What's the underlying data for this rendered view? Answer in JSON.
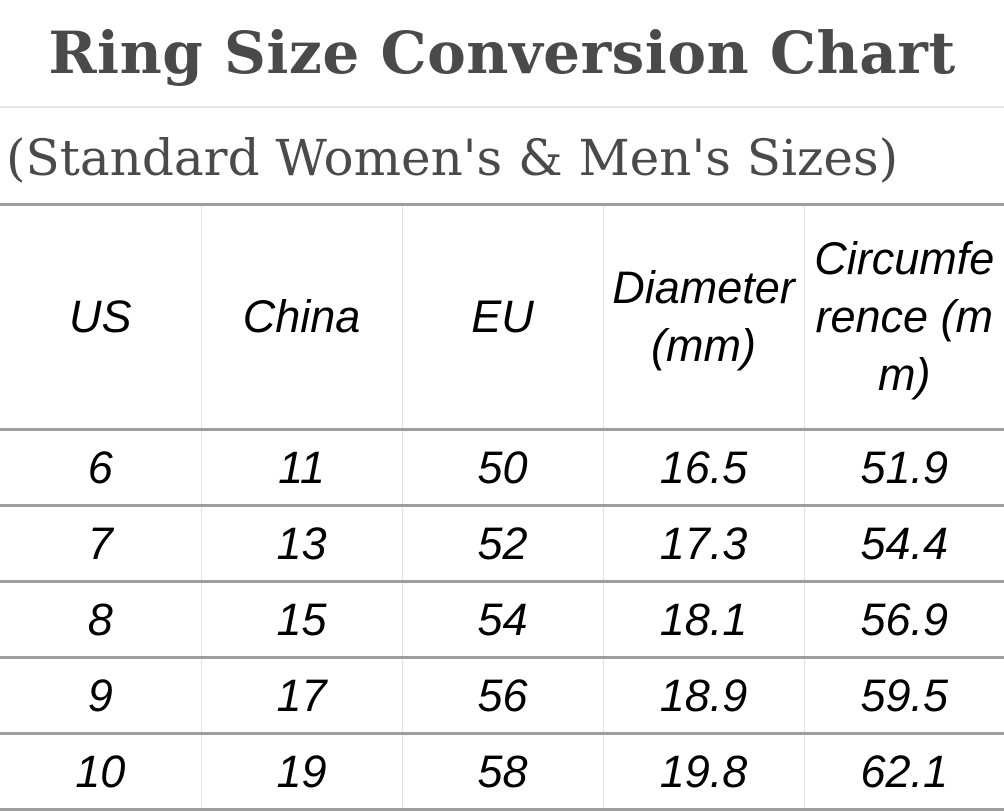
{
  "title": "Ring Size Conversion Chart",
  "subtitle": "(Standard Women's & Men's Sizes)",
  "table": {
    "headers": [
      "US",
      "China",
      "EU",
      "Diameter (mm)",
      "Circumference (mm)"
    ],
    "rows": [
      [
        "6",
        "11",
        "50",
        "16.5",
        "51.9"
      ],
      [
        "7",
        "13",
        "52",
        "17.3",
        "54.4"
      ],
      [
        "8",
        "15",
        "54",
        "18.1",
        "56.9"
      ],
      [
        "9",
        "17",
        "56",
        "18.9",
        "59.5"
      ],
      [
        "10",
        "19",
        "58",
        "19.8",
        "62.1"
      ]
    ]
  },
  "colors": {
    "heading_text": "#4a4a4a",
    "table_text": "#000000",
    "row_rule": "#9e9e9e",
    "column_rule": "#e3e3e3"
  }
}
